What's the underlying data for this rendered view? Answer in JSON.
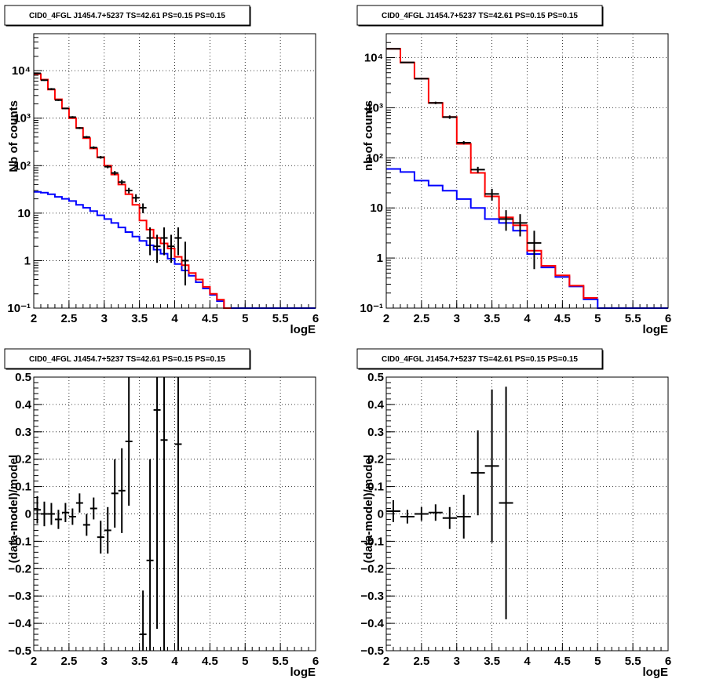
{
  "chart_data": [
    {
      "type": "line",
      "title": "CID0_4FGL J1454.7+5237 TS=42.61 PS=0.15 PS=0.15",
      "xlabel": "logE",
      "ylabel": "Nb of counts",
      "xlim": [
        2,
        6
      ],
      "ylim": [
        0.1,
        60000
      ],
      "yscale": "log",
      "grid": true,
      "x_ticks": [
        "2",
        "2.5",
        "3",
        "3.5",
        "4",
        "4.5",
        "5",
        "5.5",
        "6"
      ],
      "y_ticks": [
        "10⁻¹",
        "1",
        "10",
        "10²",
        "10³",
        "10⁴"
      ],
      "series": [
        {
          "kind": "step",
          "color": "#0000ff",
          "bin_width": 0.1,
          "x": [
            2.0,
            2.1,
            2.2,
            2.3,
            2.4,
            2.5,
            2.6,
            2.7,
            2.8,
            2.9,
            3.0,
            3.1,
            3.2,
            3.3,
            3.4,
            3.5,
            3.6,
            3.7,
            3.8,
            3.9,
            4.0,
            4.1,
            4.2,
            4.3,
            4.4,
            4.5,
            4.6,
            4.7,
            4.8,
            4.9,
            5.0,
            5.1,
            5.2,
            5.3,
            5.4,
            5.5,
            5.6,
            5.7,
            5.8,
            5.9
          ],
          "y": [
            28,
            27,
            25,
            22,
            20,
            18,
            15,
            13,
            11,
            9,
            7.5,
            6.2,
            5,
            4,
            3.2,
            2.6,
            2.1,
            1.7,
            1.4,
            1.1,
            0.85,
            0.62,
            0.48,
            0.35,
            0.26,
            0.19,
            0.14,
            0.1,
            0.09,
            0.09,
            0.09,
            0.09,
            0.09,
            0.09,
            0.09,
            0.09,
            0.09,
            0.09,
            0.09,
            0.09
          ]
        },
        {
          "kind": "step",
          "color": "#ff0000",
          "bin_width": 0.1,
          "x": [
            2.0,
            2.1,
            2.2,
            2.3,
            2.4,
            2.5,
            2.6,
            2.7,
            2.8,
            2.9,
            3.0,
            3.1,
            3.2,
            3.3,
            3.4,
            3.5,
            3.6,
            3.7,
            3.8,
            3.9,
            4.0,
            4.1,
            4.2,
            4.3,
            4.4,
            4.5,
            4.6,
            4.7
          ],
          "y": [
            8500,
            6500,
            4000,
            2500,
            1600,
            1000,
            620,
            380,
            230,
            150,
            100,
            65,
            40,
            25,
            15,
            7,
            4.5,
            3,
            2.3,
            1.8,
            1.2,
            0.8,
            0.55,
            0.4,
            0.28,
            0.2,
            0.15,
            0.1
          ]
        },
        {
          "kind": "points",
          "color": "#000000",
          "xerr": 0.05,
          "x": [
            2.05,
            2.15,
            2.25,
            2.35,
            2.45,
            2.55,
            2.65,
            2.75,
            2.85,
            2.95,
            3.05,
            3.15,
            3.25,
            3.35,
            3.45,
            3.55,
            3.65,
            3.75,
            3.85,
            3.95,
            4.05,
            4.15
          ],
          "y": [
            8800,
            6300,
            4100,
            2400,
            1600,
            1050,
            620,
            400,
            240,
            150,
            95,
            70,
            45,
            30,
            21,
            13,
            3,
            2,
            3,
            2,
            3,
            1
          ],
          "y_low": [
            8600,
            6100,
            3900,
            2300,
            1550,
            1000,
            590,
            380,
            225,
            140,
            88,
            63,
            40,
            26,
            17,
            10,
            1.3,
            0.9,
            1.3,
            0.9,
            1.3,
            0.3
          ],
          "y_high": [
            9000,
            6500,
            4300,
            2500,
            1650,
            1100,
            650,
            420,
            255,
            160,
            102,
            77,
            50,
            34,
            25,
            16,
            5,
            3.5,
            5,
            3.5,
            5,
            2.5
          ]
        }
      ]
    },
    {
      "type": "line",
      "title": "CID0_4FGL J1454.7+5237 TS=42.61 PS=0.15 PS=0.15",
      "xlabel": "logE",
      "ylabel": "nb of counts",
      "xlim": [
        2,
        6
      ],
      "ylim": [
        0.1,
        30000
      ],
      "yscale": "log",
      "grid": true,
      "x_ticks": [
        "2",
        "2.5",
        "3",
        "3.5",
        "4",
        "4.5",
        "5",
        "5.5",
        "6"
      ],
      "y_ticks": [
        "10⁻¹",
        "1",
        "10",
        "10²",
        "10³",
        "10⁴"
      ],
      "series": [
        {
          "kind": "step",
          "color": "#0000ff",
          "bin_width": 0.2,
          "x": [
            2.0,
            2.2,
            2.4,
            2.6,
            2.8,
            3.0,
            3.2,
            3.4,
            3.6,
            3.8,
            4.0,
            4.2,
            4.4,
            4.6,
            4.8,
            5.0,
            5.2,
            5.4,
            5.6,
            5.8
          ],
          "y": [
            60,
            52,
            35,
            28,
            22,
            15,
            10,
            6,
            5,
            3.5,
            1.2,
            0.65,
            0.42,
            0.27,
            0.15,
            0.09,
            0.09,
            0.09,
            0.09,
            0.09
          ]
        },
        {
          "kind": "step",
          "color": "#ff0000",
          "bin_width": 0.2,
          "x": [
            2.0,
            2.2,
            2.4,
            2.6,
            2.8,
            3.0,
            3.2,
            3.4,
            3.6,
            3.8,
            4.0,
            4.2,
            4.4,
            4.6,
            4.8
          ],
          "y": [
            15000,
            8000,
            3800,
            1250,
            650,
            190,
            50,
            17,
            6.5,
            4.5,
            1.4,
            0.7,
            0.45,
            0.28,
            0.16
          ]
        },
        {
          "kind": "points",
          "color": "#000000",
          "xerr": 0.1,
          "x": [
            2.1,
            2.3,
            2.5,
            2.7,
            2.9,
            3.1,
            3.3,
            3.5,
            3.7,
            3.9,
            4.1
          ],
          "y": [
            15000,
            8000,
            3800,
            1250,
            650,
            200,
            58,
            19,
            6,
            5,
            2
          ],
          "y_low": [
            14700,
            7800,
            3650,
            1180,
            600,
            185,
            50,
            14,
            3.5,
            2.7,
            0.6
          ],
          "y_high": [
            15300,
            8200,
            3950,
            1320,
            700,
            215,
            66,
            24,
            9,
            7.5,
            3.5
          ]
        }
      ]
    },
    {
      "type": "scatter",
      "title": "CID0_4FGL J1454.7+5237 TS=42.61 PS=0.15 PS=0.15",
      "xlabel": "logE",
      "ylabel": "(data-model)/model",
      "xlim": [
        2,
        6
      ],
      "ylim": [
        -0.5,
        0.5
      ],
      "grid": true,
      "x_ticks": [
        "2",
        "2.5",
        "3",
        "3.5",
        "4",
        "4.5",
        "5",
        "5.5",
        "6"
      ],
      "y_ticks": [
        "−0.5",
        "−0.4",
        "−0.3",
        "−0.2",
        "−0.1",
        "0",
        "0.1",
        "0.2",
        "0.3",
        "0.4",
        "0.5"
      ],
      "series": [
        {
          "kind": "points",
          "color": "#000000",
          "xerr": 0.05,
          "x": [
            2.05,
            2.15,
            2.25,
            2.35,
            2.45,
            2.55,
            2.65,
            2.75,
            2.85,
            2.95,
            3.05,
            3.15,
            3.25,
            3.35,
            3.55,
            3.65,
            3.75,
            3.85,
            4.05
          ],
          "y": [
            0.015,
            0.0,
            0.0,
            -0.02,
            0.005,
            -0.01,
            0.04,
            -0.04,
            0.02,
            -0.085,
            -0.06,
            0.075,
            0.085,
            0.265,
            -0.44,
            -0.17,
            0.38,
            0.27,
            0.255
          ],
          "y_low": [
            -0.035,
            -0.045,
            -0.04,
            -0.055,
            -0.03,
            -0.04,
            0.005,
            -0.08,
            -0.02,
            -0.145,
            -0.145,
            -0.05,
            -0.07,
            0.03,
            -0.5,
            -0.5,
            -0.42,
            -0.5,
            -0.5
          ],
          "y_high": [
            0.065,
            0.045,
            0.04,
            0.015,
            0.04,
            0.02,
            0.075,
            0.0,
            0.06,
            -0.025,
            0.025,
            0.2,
            0.24,
            0.5,
            -0.28,
            0.2,
            0.5,
            0.5,
            0.5
          ]
        }
      ]
    },
    {
      "type": "scatter",
      "title": "CID0_4FGL J1454.7+5237 TS=42.61 PS=0.15 PS=0.15",
      "xlabel": "logE",
      "ylabel": "(data-model)/model",
      "xlim": [
        2,
        6
      ],
      "ylim": [
        -0.5,
        0.5
      ],
      "grid": true,
      "x_ticks": [
        "2",
        "2.5",
        "3",
        "3.5",
        "4",
        "4.5",
        "5",
        "5.5",
        "6"
      ],
      "y_ticks": [
        "−0.5",
        "−0.4",
        "−0.3",
        "−0.2",
        "−0.1",
        "0",
        "0.1",
        "0.2",
        "0.3",
        "0.4",
        "0.5"
      ],
      "series": [
        {
          "kind": "points",
          "color": "#000000",
          "xerr": 0.1,
          "x": [
            2.1,
            2.3,
            2.5,
            2.7,
            2.9,
            3.1,
            3.3,
            3.5,
            3.7
          ],
          "y": [
            0.01,
            -0.01,
            0.0,
            0.005,
            -0.015,
            -0.01,
            0.15,
            0.175,
            0.04
          ],
          "y_low": [
            -0.03,
            -0.035,
            -0.025,
            -0.025,
            -0.055,
            -0.09,
            -0.005,
            -0.105,
            -0.385
          ],
          "y_high": [
            0.05,
            0.015,
            0.025,
            0.035,
            0.025,
            0.07,
            0.305,
            0.455,
            0.465
          ]
        }
      ]
    }
  ]
}
